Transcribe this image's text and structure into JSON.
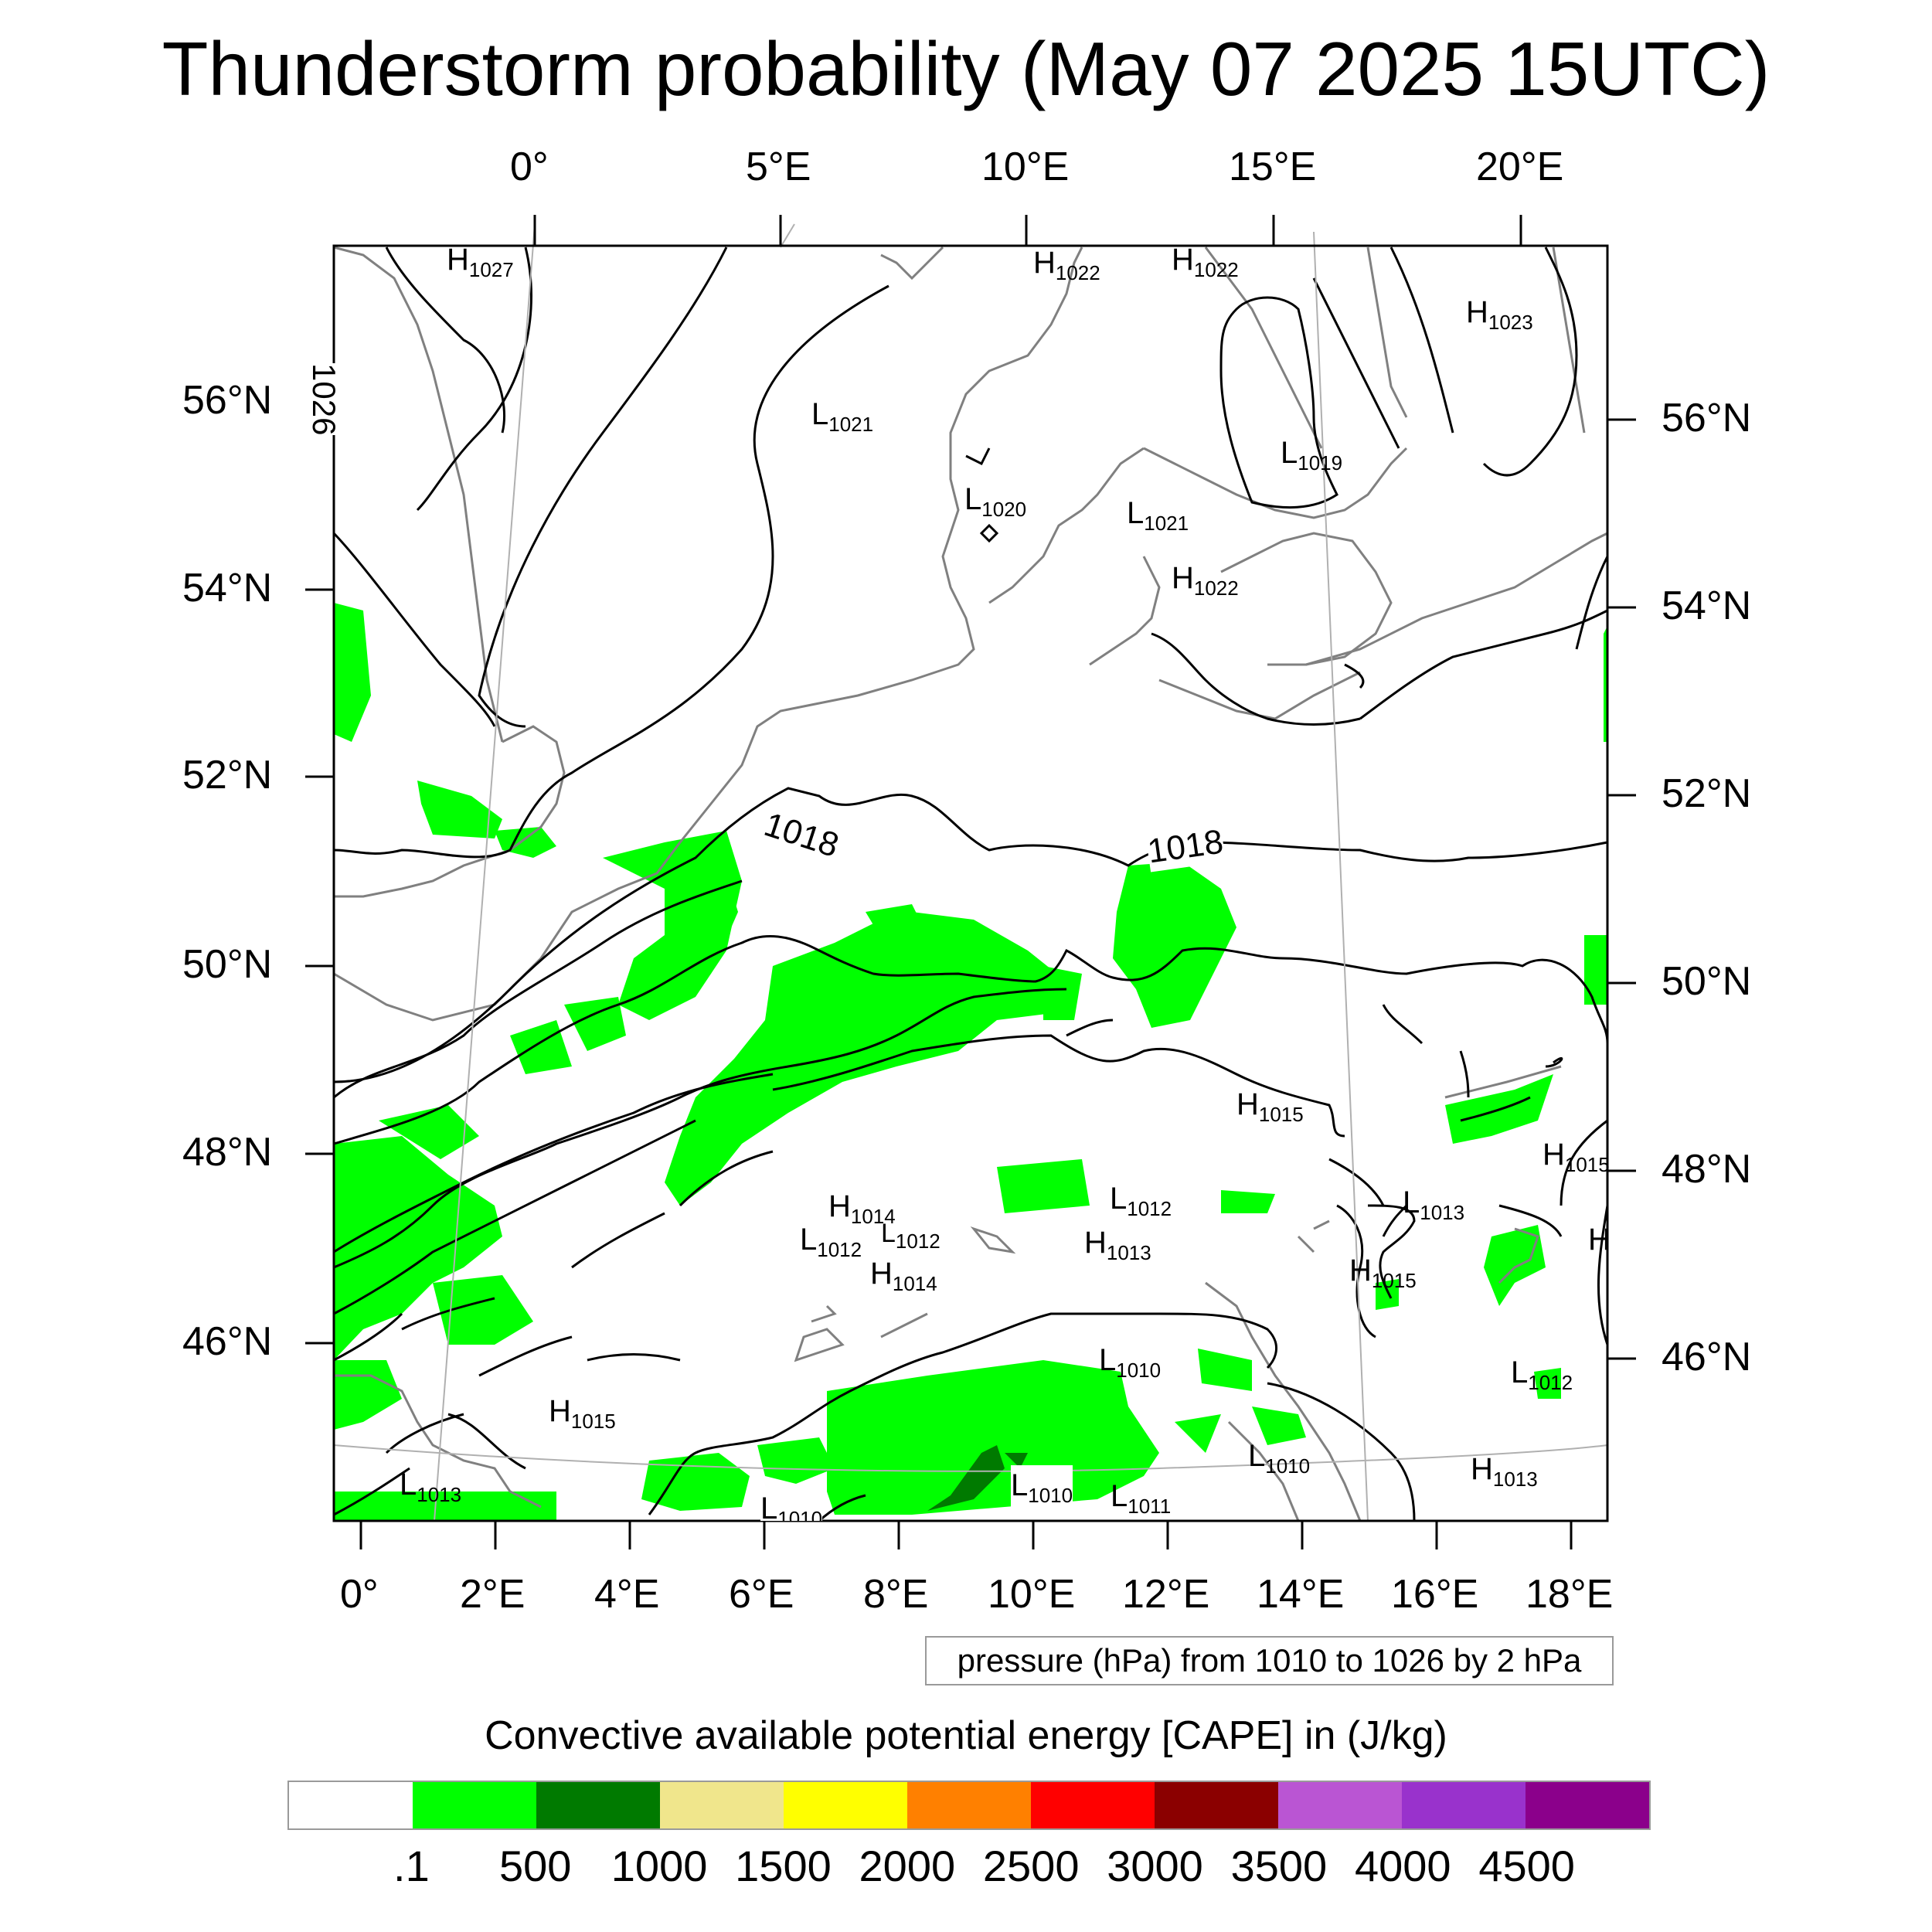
{
  "title": "Thunderstorm probability (May 07 2025 15UTC)",
  "top_lon_labels": [
    "0°",
    "5°E",
    "10°E",
    "15°E",
    "20°E"
  ],
  "bottom_lon_labels": [
    "0°",
    "2°E",
    "4°E",
    "6°E",
    "8°E",
    "10°E",
    "12°E",
    "14°E",
    "16°E",
    "18°E"
  ],
  "left_lat_labels": [
    "56°N",
    "54°N",
    "52°N",
    "50°N",
    "48°N",
    "46°N"
  ],
  "right_lat_labels": [
    "56°N",
    "54°N",
    "52°N",
    "50°N",
    "48°N",
    "46°N"
  ],
  "contour_labels": [
    "1026",
    "1018",
    "1018"
  ],
  "pressure_centers": [
    {
      "letter": "H",
      "value": "1027"
    },
    {
      "letter": "H",
      "value": "1022"
    },
    {
      "letter": "H",
      "value": "1022"
    },
    {
      "letter": "H",
      "value": "1023"
    },
    {
      "letter": "L",
      "value": "1021"
    },
    {
      "letter": "L",
      "value": "1020"
    },
    {
      "letter": "L",
      "value": "1021"
    },
    {
      "letter": "L",
      "value": "1019"
    },
    {
      "letter": "H",
      "value": "1022"
    },
    {
      "letter": "H",
      "value": "1015"
    },
    {
      "letter": "H",
      "value": "1015"
    },
    {
      "letter": "H",
      "value": "1014"
    },
    {
      "letter": "L",
      "value": "1012"
    },
    {
      "letter": "L",
      "value": "1012"
    },
    {
      "letter": "L",
      "value": "1012"
    },
    {
      "letter": "H",
      "value": "1013"
    },
    {
      "letter": "L",
      "value": "1013"
    },
    {
      "letter": "H",
      "value": "1014"
    },
    {
      "letter": "H",
      "value": "1015"
    },
    {
      "letter": "H",
      "value": ""
    },
    {
      "letter": "H",
      "value": "1015"
    },
    {
      "letter": "L",
      "value": "1010"
    },
    {
      "letter": "L",
      "value": "1012"
    },
    {
      "letter": "L",
      "value": "1013"
    },
    {
      "letter": "L",
      "value": "1010"
    },
    {
      "letter": "L",
      "value": "1010"
    },
    {
      "letter": "L",
      "value": "1011"
    },
    {
      "letter": "L",
      "value": "1010"
    },
    {
      "letter": "H",
      "value": "1013"
    }
  ],
  "contour_note": "pressure (hPa) from 1010 to 1026 by 2 hPa",
  "colorbar": {
    "title": "Convective available potential energy [CAPE] in (J/kg)",
    "labels": [
      ".1",
      "500",
      "1000",
      "1500",
      "2000",
      "2500",
      "3000",
      "3500",
      "4000",
      "4500"
    ],
    "colors": [
      "#ffffff",
      "#00ff00",
      "#007a00",
      "#f0e68c",
      "#ffff00",
      "#ff8000",
      "#ff0000",
      "#8b0000",
      "#ba55d3",
      "#9932cc",
      "#8b008b"
    ]
  }
}
